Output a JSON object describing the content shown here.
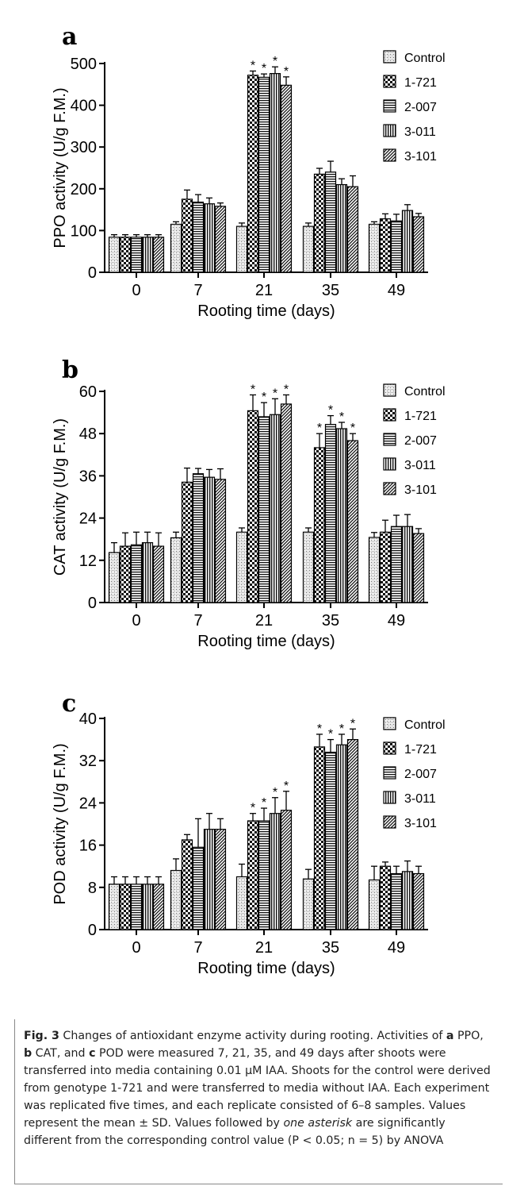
{
  "legend_items": [
    "Control",
    "1-721",
    "2-007",
    "3-011",
    "3-101"
  ],
  "chart_data": [
    {
      "type": "bar",
      "panel_label": "a",
      "categories": [
        "0",
        "7",
        "21",
        "35",
        "49"
      ],
      "xlabel": "Rooting time (days)",
      "ylabel": "PPO activity (U/g F.M.)",
      "ylim": [
        0,
        500
      ],
      "yticks": [
        0,
        100,
        200,
        300,
        400,
        500
      ],
      "legend": "top-right",
      "grid": false,
      "series": [
        {
          "name": "Control",
          "values": [
            84,
            115,
            110,
            110,
            115
          ],
          "errors": [
            6,
            6,
            8,
            8,
            6
          ],
          "significant": [
            false,
            false,
            false,
            false,
            false
          ]
        },
        {
          "name": "1-721",
          "values": [
            84,
            175,
            472,
            235,
            128
          ],
          "errors": [
            6,
            22,
            10,
            14,
            12
          ],
          "significant": [
            false,
            false,
            true,
            false,
            false
          ]
        },
        {
          "name": "2-007",
          "values": [
            84,
            168,
            467,
            240,
            123
          ],
          "errors": [
            6,
            18,
            8,
            26,
            16
          ],
          "significant": [
            false,
            false,
            true,
            false,
            false
          ]
        },
        {
          "name": "3-011",
          "values": [
            84,
            164,
            476,
            210,
            148
          ],
          "errors": [
            6,
            14,
            16,
            14,
            14
          ],
          "significant": [
            false,
            false,
            true,
            false,
            false
          ]
        },
        {
          "name": "3-101",
          "values": [
            84,
            158,
            448,
            205,
            133
          ],
          "errors": [
            6,
            8,
            20,
            26,
            8
          ],
          "significant": [
            false,
            false,
            true,
            false,
            false
          ]
        }
      ]
    },
    {
      "type": "bar",
      "panel_label": "b",
      "categories": [
        "0",
        "7",
        "21",
        "35",
        "49"
      ],
      "xlabel": "Rooting time (days)",
      "ylabel": "CAT activity (U/g F.M.)",
      "ylim": [
        0,
        60
      ],
      "yticks": [
        0,
        12,
        24,
        36,
        48,
        60
      ],
      "legend": "top-right",
      "grid": false,
      "series": [
        {
          "name": "Control",
          "values": [
            14.2,
            18.4,
            20.0,
            20.0,
            18.5
          ],
          "errors": [
            2.8,
            1.6,
            1.2,
            1.2,
            1.4
          ],
          "significant": [
            false,
            false,
            false,
            false,
            false
          ]
        },
        {
          "name": "1-721",
          "values": [
            16.0,
            34.2,
            54.5,
            44.0,
            20.0
          ],
          "errors": [
            3.8,
            4.0,
            4.5,
            4.0,
            3.4
          ],
          "significant": [
            false,
            false,
            true,
            true,
            false
          ]
        },
        {
          "name": "2-007",
          "values": [
            16.4,
            36.6,
            52.8,
            50.6,
            21.6
          ],
          "errors": [
            3.6,
            1.5,
            4.0,
            2.5,
            3.2
          ],
          "significant": [
            false,
            false,
            true,
            true,
            false
          ]
        },
        {
          "name": "3-011",
          "values": [
            17.0,
            35.6,
            53.4,
            49.4,
            21.6
          ],
          "errors": [
            3.0,
            2.2,
            4.5,
            1.8,
            3.4
          ],
          "significant": [
            false,
            false,
            true,
            true,
            false
          ]
        },
        {
          "name": "3-101",
          "values": [
            16.0,
            35.0,
            56.4,
            46.0,
            19.6
          ],
          "errors": [
            3.8,
            3.0,
            2.6,
            2.0,
            1.4
          ],
          "significant": [
            false,
            false,
            true,
            true,
            false
          ]
        }
      ]
    },
    {
      "type": "bar",
      "panel_label": "c",
      "categories": [
        "0",
        "7",
        "21",
        "35",
        "49"
      ],
      "xlabel": "Rooting time (days)",
      "ylabel": "POD activity (U/g F.M.)",
      "ylim": [
        0,
        40
      ],
      "yticks": [
        0,
        8,
        16,
        24,
        32,
        40
      ],
      "legend": "top-right",
      "grid": false,
      "series": [
        {
          "name": "Control",
          "values": [
            8.6,
            11.2,
            10.0,
            9.6,
            9.4
          ],
          "errors": [
            1.4,
            2.2,
            2.4,
            1.8,
            2.6
          ],
          "significant": [
            false,
            false,
            false,
            false,
            false
          ]
        },
        {
          "name": "1-721",
          "values": [
            8.6,
            17.0,
            20.6,
            34.6,
            12.0
          ],
          "errors": [
            1.4,
            1.0,
            1.4,
            2.4,
            0.8
          ],
          "significant": [
            false,
            false,
            true,
            true,
            false
          ]
        },
        {
          "name": "2-007",
          "values": [
            8.6,
            15.6,
            20.6,
            33.6,
            10.6
          ],
          "errors": [
            1.4,
            5.4,
            2.4,
            2.4,
            1.4
          ],
          "significant": [
            false,
            false,
            true,
            true,
            false
          ]
        },
        {
          "name": "3-011",
          "values": [
            8.6,
            19.0,
            22.0,
            35.0,
            11.0
          ],
          "errors": [
            1.4,
            3.0,
            3.0,
            2.0,
            2.0
          ],
          "significant": [
            false,
            false,
            true,
            true,
            false
          ]
        },
        {
          "name": "3-101",
          "values": [
            8.6,
            19.0,
            22.6,
            36.0,
            10.6
          ],
          "errors": [
            1.4,
            2.0,
            3.6,
            2.0,
            1.4
          ],
          "significant": [
            false,
            false,
            true,
            true,
            false
          ]
        }
      ]
    }
  ],
  "significance_marker": "*",
  "caption": {
    "fig_label": "Fig. 3",
    "s1": " Changes of antioxidant enzyme activity during rooting. Activities of ",
    "a": "a",
    "s2": " PPO, ",
    "b": "b",
    "s3": " CAT, and ",
    "c": "c",
    "s4": " POD were measured 7, 21, 35, and 49 days after shoots were transferred into media containing 0.01 µM IAA. Shoots for the control were derived from genotype 1-721 and were transferred to media without IAA. Each experiment was replicated five times, and each replicate consisted of 6–8 samples. Values represent the mean ± SD. Values followed by ",
    "italic": "one asterisk",
    "s5": " are significantly different from the corresponding control value (P < 0.05; n = 5) by ANOVA"
  }
}
